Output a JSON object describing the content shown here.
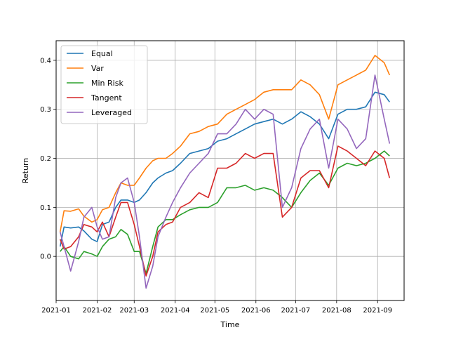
{
  "chart_data": {
    "type": "line",
    "title": "",
    "xlabel": "Time",
    "ylabel": "Return",
    "grid": true,
    "legend_position": "upper-left",
    "xlim": [
      "2021-01-01",
      "2021-09-21"
    ],
    "ylim": [
      -0.09,
      0.44
    ],
    "x_ticks": [
      "2021-01",
      "2021-02",
      "2021-03",
      "2021-04",
      "2021-05",
      "2021-06",
      "2021-07",
      "2021-08",
      "2021-09"
    ],
    "y_ticks": [
      "0.0",
      "0.1",
      "0.2",
      "0.3",
      "0.4"
    ],
    "series": [
      {
        "name": "Equal",
        "color": "#1f77b4",
        "points": [
          [
            "2021-01-04",
            0.02
          ],
          [
            "2021-01-07",
            0.06
          ],
          [
            "2021-01-12",
            0.058
          ],
          [
            "2021-01-18",
            0.06
          ],
          [
            "2021-01-22",
            0.052
          ],
          [
            "2021-01-28",
            0.035
          ],
          [
            "2021-02-01",
            0.03
          ],
          [
            "2021-02-05",
            0.065
          ],
          [
            "2021-02-10",
            0.07
          ],
          [
            "2021-02-15",
            0.1
          ],
          [
            "2021-02-19",
            0.115
          ],
          [
            "2021-02-24",
            0.115
          ],
          [
            "2021-03-01",
            0.11
          ],
          [
            "2021-03-05",
            0.115
          ],
          [
            "2021-03-10",
            0.13
          ],
          [
            "2021-03-15",
            0.15
          ],
          [
            "2021-03-19",
            0.16
          ],
          [
            "2021-03-25",
            0.17
          ],
          [
            "2021-03-30",
            0.175
          ],
          [
            "2021-04-05",
            0.19
          ],
          [
            "2021-04-12",
            0.21
          ],
          [
            "2021-04-19",
            0.215
          ],
          [
            "2021-04-26",
            0.22
          ],
          [
            "2021-05-03",
            0.235
          ],
          [
            "2021-05-10",
            0.24
          ],
          [
            "2021-05-17",
            0.25
          ],
          [
            "2021-05-24",
            0.26
          ],
          [
            "2021-05-31",
            0.27
          ],
          [
            "2021-06-07",
            0.275
          ],
          [
            "2021-06-14",
            0.28
          ],
          [
            "2021-06-21",
            0.27
          ],
          [
            "2021-06-28",
            0.28
          ],
          [
            "2021-07-05",
            0.295
          ],
          [
            "2021-07-12",
            0.285
          ],
          [
            "2021-07-19",
            0.27
          ],
          [
            "2021-07-26",
            0.24
          ],
          [
            "2021-08-02",
            0.29
          ],
          [
            "2021-08-09",
            0.3
          ],
          [
            "2021-08-16",
            0.3
          ],
          [
            "2021-08-23",
            0.305
          ],
          [
            "2021-08-30",
            0.335
          ],
          [
            "2021-09-06",
            0.33
          ],
          [
            "2021-09-10",
            0.315
          ]
        ]
      },
      {
        "name": "Var",
        "color": "#ff7f0e",
        "points": [
          [
            "2021-01-04",
            0.05
          ],
          [
            "2021-01-07",
            0.093
          ],
          [
            "2021-01-12",
            0.092
          ],
          [
            "2021-01-18",
            0.097
          ],
          [
            "2021-01-22",
            0.082
          ],
          [
            "2021-01-28",
            0.07
          ],
          [
            "2021-02-01",
            0.075
          ],
          [
            "2021-02-05",
            0.095
          ],
          [
            "2021-02-10",
            0.1
          ],
          [
            "2021-02-15",
            0.13
          ],
          [
            "2021-02-19",
            0.15
          ],
          [
            "2021-02-24",
            0.145
          ],
          [
            "2021-03-01",
            0.145
          ],
          [
            "2021-03-05",
            0.16
          ],
          [
            "2021-03-10",
            0.18
          ],
          [
            "2021-03-15",
            0.195
          ],
          [
            "2021-03-19",
            0.2
          ],
          [
            "2021-03-25",
            0.2
          ],
          [
            "2021-03-30",
            0.21
          ],
          [
            "2021-04-05",
            0.225
          ],
          [
            "2021-04-12",
            0.25
          ],
          [
            "2021-04-19",
            0.255
          ],
          [
            "2021-04-26",
            0.265
          ],
          [
            "2021-05-03",
            0.27
          ],
          [
            "2021-05-10",
            0.29
          ],
          [
            "2021-05-17",
            0.3
          ],
          [
            "2021-05-24",
            0.31
          ],
          [
            "2021-05-31",
            0.32
          ],
          [
            "2021-06-07",
            0.335
          ],
          [
            "2021-06-14",
            0.34
          ],
          [
            "2021-06-21",
            0.34
          ],
          [
            "2021-06-28",
            0.34
          ],
          [
            "2021-07-05",
            0.36
          ],
          [
            "2021-07-12",
            0.35
          ],
          [
            "2021-07-19",
            0.33
          ],
          [
            "2021-07-26",
            0.28
          ],
          [
            "2021-08-02",
            0.35
          ],
          [
            "2021-08-09",
            0.36
          ],
          [
            "2021-08-16",
            0.37
          ],
          [
            "2021-08-23",
            0.38
          ],
          [
            "2021-08-30",
            0.41
          ],
          [
            "2021-09-06",
            0.395
          ],
          [
            "2021-09-10",
            0.37
          ]
        ]
      },
      {
        "name": "Min Risk",
        "color": "#2ca02c",
        "points": [
          [
            "2021-01-04",
            0.01
          ],
          [
            "2021-01-07",
            0.02
          ],
          [
            "2021-01-12",
            0.0
          ],
          [
            "2021-01-18",
            -0.005
          ],
          [
            "2021-01-22",
            0.01
          ],
          [
            "2021-01-28",
            0.005
          ],
          [
            "2021-02-01",
            0.0
          ],
          [
            "2021-02-05",
            0.02
          ],
          [
            "2021-02-10",
            0.035
          ],
          [
            "2021-02-15",
            0.04
          ],
          [
            "2021-02-19",
            0.055
          ],
          [
            "2021-02-24",
            0.045
          ],
          [
            "2021-03-01",
            0.01
          ],
          [
            "2021-03-05",
            0.01
          ],
          [
            "2021-03-10",
            -0.035
          ],
          [
            "2021-03-15",
            0.02
          ],
          [
            "2021-03-19",
            0.06
          ],
          [
            "2021-03-25",
            0.075
          ],
          [
            "2021-03-30",
            0.075
          ],
          [
            "2021-04-05",
            0.085
          ],
          [
            "2021-04-12",
            0.095
          ],
          [
            "2021-04-19",
            0.1
          ],
          [
            "2021-04-26",
            0.1
          ],
          [
            "2021-05-03",
            0.11
          ],
          [
            "2021-05-10",
            0.14
          ],
          [
            "2021-05-17",
            0.14
          ],
          [
            "2021-05-24",
            0.145
          ],
          [
            "2021-05-31",
            0.135
          ],
          [
            "2021-06-07",
            0.14
          ],
          [
            "2021-06-14",
            0.135
          ],
          [
            "2021-06-21",
            0.12
          ],
          [
            "2021-06-28",
            0.1
          ],
          [
            "2021-07-05",
            0.13
          ],
          [
            "2021-07-12",
            0.155
          ],
          [
            "2021-07-19",
            0.17
          ],
          [
            "2021-07-26",
            0.145
          ],
          [
            "2021-08-02",
            0.18
          ],
          [
            "2021-08-09",
            0.19
          ],
          [
            "2021-08-16",
            0.185
          ],
          [
            "2021-08-23",
            0.19
          ],
          [
            "2021-08-30",
            0.2
          ],
          [
            "2021-09-06",
            0.215
          ],
          [
            "2021-09-10",
            0.205
          ]
        ]
      },
      {
        "name": "Tangent",
        "color": "#d62728",
        "points": [
          [
            "2021-01-04",
            0.035
          ],
          [
            "2021-01-07",
            0.015
          ],
          [
            "2021-01-12",
            0.02
          ],
          [
            "2021-01-18",
            0.04
          ],
          [
            "2021-01-22",
            0.065
          ],
          [
            "2021-01-28",
            0.06
          ],
          [
            "2021-02-01",
            0.05
          ],
          [
            "2021-02-05",
            0.07
          ],
          [
            "2021-02-10",
            0.04
          ],
          [
            "2021-02-15",
            0.08
          ],
          [
            "2021-02-19",
            0.11
          ],
          [
            "2021-02-24",
            0.11
          ],
          [
            "2021-03-01",
            0.065
          ],
          [
            "2021-03-05",
            0.02
          ],
          [
            "2021-03-10",
            -0.04
          ],
          [
            "2021-03-15",
            0.0
          ],
          [
            "2021-03-19",
            0.05
          ],
          [
            "2021-03-25",
            0.065
          ],
          [
            "2021-03-30",
            0.07
          ],
          [
            "2021-04-05",
            0.1
          ],
          [
            "2021-04-12",
            0.11
          ],
          [
            "2021-04-19",
            0.13
          ],
          [
            "2021-04-26",
            0.12
          ],
          [
            "2021-05-03",
            0.18
          ],
          [
            "2021-05-10",
            0.18
          ],
          [
            "2021-05-17",
            0.19
          ],
          [
            "2021-05-24",
            0.21
          ],
          [
            "2021-05-31",
            0.2
          ],
          [
            "2021-06-07",
            0.21
          ],
          [
            "2021-06-14",
            0.21
          ],
          [
            "2021-06-21",
            0.08
          ],
          [
            "2021-06-28",
            0.1
          ],
          [
            "2021-07-05",
            0.16
          ],
          [
            "2021-07-12",
            0.175
          ],
          [
            "2021-07-19",
            0.175
          ],
          [
            "2021-07-26",
            0.14
          ],
          [
            "2021-08-02",
            0.225
          ],
          [
            "2021-08-09",
            0.215
          ],
          [
            "2021-08-16",
            0.2
          ],
          [
            "2021-08-23",
            0.185
          ],
          [
            "2021-08-30",
            0.215
          ],
          [
            "2021-09-06",
            0.2
          ],
          [
            "2021-09-10",
            0.16
          ]
        ]
      },
      {
        "name": "Leveraged",
        "color": "#9467bd",
        "points": [
          [
            "2021-01-04",
            0.05
          ],
          [
            "2021-01-07",
            0.02
          ],
          [
            "2021-01-12",
            -0.03
          ],
          [
            "2021-01-18",
            0.03
          ],
          [
            "2021-01-22",
            0.08
          ],
          [
            "2021-01-28",
            0.1
          ],
          [
            "2021-02-01",
            0.06
          ],
          [
            "2021-02-05",
            0.035
          ],
          [
            "2021-02-10",
            0.04
          ],
          [
            "2021-02-15",
            0.12
          ],
          [
            "2021-02-19",
            0.15
          ],
          [
            "2021-02-24",
            0.16
          ],
          [
            "2021-03-01",
            0.11
          ],
          [
            "2021-03-05",
            0.04
          ],
          [
            "2021-03-10",
            -0.065
          ],
          [
            "2021-03-15",
            -0.02
          ],
          [
            "2021-03-19",
            0.04
          ],
          [
            "2021-03-25",
            0.08
          ],
          [
            "2021-03-30",
            0.11
          ],
          [
            "2021-04-05",
            0.14
          ],
          [
            "2021-04-12",
            0.17
          ],
          [
            "2021-04-19",
            0.19
          ],
          [
            "2021-04-26",
            0.21
          ],
          [
            "2021-05-03",
            0.25
          ],
          [
            "2021-05-10",
            0.25
          ],
          [
            "2021-05-17",
            0.27
          ],
          [
            "2021-05-24",
            0.3
          ],
          [
            "2021-05-31",
            0.28
          ],
          [
            "2021-06-07",
            0.3
          ],
          [
            "2021-06-14",
            0.29
          ],
          [
            "2021-06-21",
            0.1
          ],
          [
            "2021-06-28",
            0.14
          ],
          [
            "2021-07-05",
            0.22
          ],
          [
            "2021-07-12",
            0.26
          ],
          [
            "2021-07-19",
            0.28
          ],
          [
            "2021-07-26",
            0.18
          ],
          [
            "2021-08-02",
            0.28
          ],
          [
            "2021-08-09",
            0.26
          ],
          [
            "2021-08-16",
            0.22
          ],
          [
            "2021-08-23",
            0.24
          ],
          [
            "2021-08-30",
            0.37
          ],
          [
            "2021-09-06",
            0.28
          ],
          [
            "2021-09-10",
            0.23
          ]
        ]
      }
    ]
  }
}
